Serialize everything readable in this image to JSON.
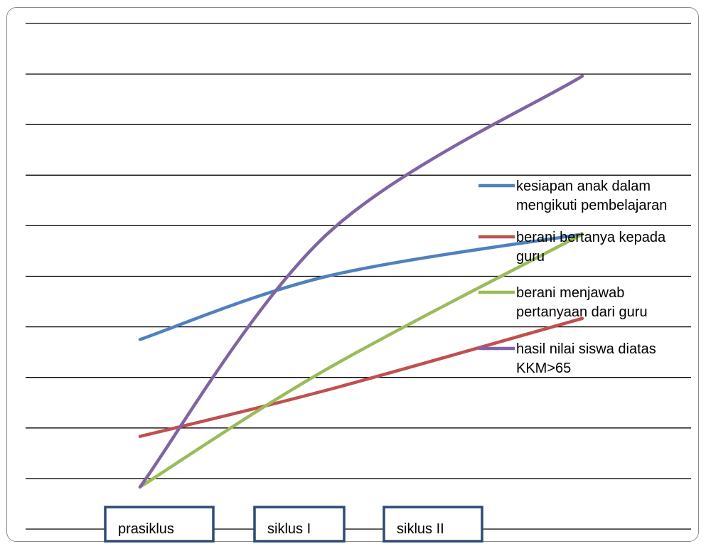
{
  "chart_data": {
    "type": "line",
    "categories": [
      "prasiklus",
      "siklus I",
      "siklus II"
    ],
    "series": [
      {
        "name": "kesiapan anak dalam mengikuti pembelajaran",
        "values": [
          4.5,
          6.0,
          7.0
        ],
        "color": "#4F81BD"
      },
      {
        "name": "berani bertanya kepada guru",
        "values": [
          2.2,
          3.3,
          5.0
        ],
        "color": "#C0504D"
      },
      {
        "name": "berani menjawab pertanyaan dari guru",
        "values": [
          1.0,
          3.8,
          7.0
        ],
        "color": "#9BBB59"
      },
      {
        "name": "hasil nilai siswa diatas KKM>65",
        "values": [
          1.0,
          7.0,
          10.75
        ],
        "color": "#8064A2"
      }
    ],
    "ylim": [
      0,
      12
    ],
    "grid": true,
    "legend_position": "right"
  }
}
